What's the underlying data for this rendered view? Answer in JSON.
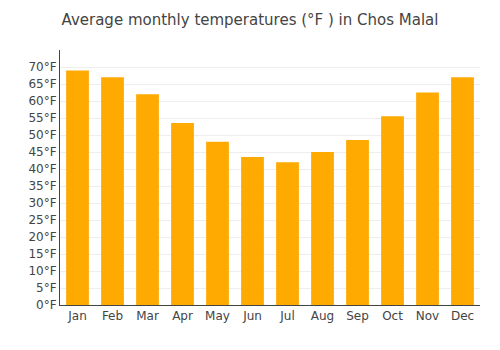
{
  "chart_data": {
    "type": "bar",
    "title": "Average monthly temperatures (°F ) in Chos Malal",
    "categories": [
      "Jan",
      "Feb",
      "Mar",
      "Apr",
      "May",
      "Jun",
      "Jul",
      "Aug",
      "Sep",
      "Oct",
      "Nov",
      "Dec"
    ],
    "values": [
      69,
      67,
      62,
      53.5,
      48,
      43.5,
      42,
      45,
      48.5,
      55.5,
      62.5,
      67
    ],
    "color": "#FFAA00",
    "ylim": [
      0,
      75
    ],
    "yticks": [
      {
        "value": 0,
        "label": "0°F"
      },
      {
        "value": 5,
        "label": "5°F"
      },
      {
        "value": 10,
        "label": "10°F"
      },
      {
        "value": 15,
        "label": "15°F"
      },
      {
        "value": 20,
        "label": "20°F"
      },
      {
        "value": 25,
        "label": "25°F"
      },
      {
        "value": 30,
        "label": "30°F"
      },
      {
        "value": 35,
        "label": "35°F"
      },
      {
        "value": 40,
        "label": "40°F"
      },
      {
        "value": 45,
        "label": "45°F"
      },
      {
        "value": 50,
        "label": "50°F"
      },
      {
        "value": 55,
        "label": "55°F"
      },
      {
        "value": 60,
        "label": "60°F"
      },
      {
        "value": 65,
        "label": "65°F"
      },
      {
        "value": 70,
        "label": "70°F"
      }
    ],
    "grid": true
  }
}
